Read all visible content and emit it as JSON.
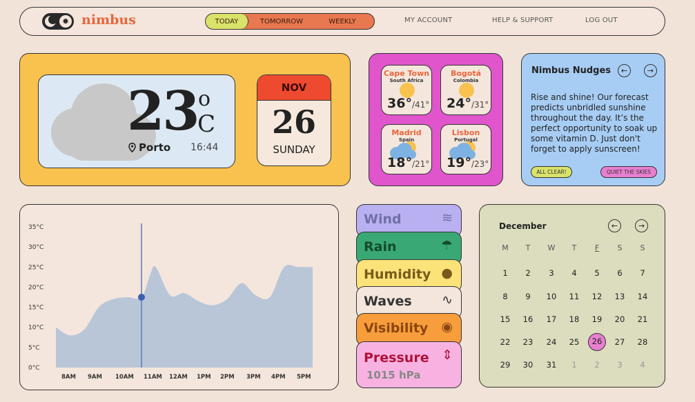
{
  "header": {
    "brand": "nimbus",
    "tabs": [
      "TODAY",
      "TOMORROW",
      "WEEKLY"
    ],
    "nav": [
      "MY ACCOUNT",
      "HELP & SUPPORT",
      "LOG OUT"
    ]
  },
  "current": {
    "temp": "23",
    "deg": "o",
    "unit": "C",
    "location": "Porto",
    "time": "16:44",
    "month": "NOV",
    "day": "26",
    "weekday": "SUNDAY"
  },
  "cities": [
    {
      "name": "Cape Town",
      "country": "South Africa",
      "high": "36°",
      "low": "/41°",
      "icon": "sun"
    },
    {
      "name": "Bogotá",
      "country": "Colombia",
      "high": "24°",
      "low": "/31°",
      "icon": "sun"
    },
    {
      "name": "Madrid",
      "country": "Spain",
      "high": "18°",
      "low": "/21°",
      "icon": "cloud-sun"
    },
    {
      "name": "Lisbon",
      "country": "Portugal",
      "high": "19°",
      "low": "/23°",
      "icon": "cloud-sun"
    }
  ],
  "nudges": {
    "title": "Nimbus Nudges",
    "text": "Rise and shine! Our forecast predicts unbridled sunshine throughout the day. It’s the perfect opportunity to soak up some vitamin D. Just don't forget to apply sunscreen!",
    "btn_left": "ALL CLEAR!",
    "btn_right": "QUIET THE SKIES",
    "prev": "←",
    "next": "→"
  },
  "chart_data": {
    "type": "area",
    "x": [
      "8AM",
      "9AM",
      "10AM",
      "11AM",
      "12AM",
      "1PM",
      "2PM",
      "3PM",
      "4PM",
      "5PM"
    ],
    "y_ticks": [
      "0°C",
      "5°C",
      "10°C",
      "15°C",
      "20°C",
      "25°C",
      "30°C",
      "35°C"
    ],
    "ylim": [
      0,
      35
    ],
    "profile": [
      [
        8.0,
        10
      ],
      [
        8.5,
        8
      ],
      [
        9.0,
        9.5
      ],
      [
        9.5,
        15
      ],
      [
        10.0,
        17
      ],
      [
        10.5,
        17.5
      ],
      [
        11.0,
        17.5
      ],
      [
        11.3,
        23
      ],
      [
        11.5,
        25
      ],
      [
        12.0,
        18
      ],
      [
        12.5,
        18.5
      ],
      [
        13.0,
        16.5
      ],
      [
        13.5,
        15.5
      ],
      [
        14.0,
        17
      ],
      [
        14.5,
        21
      ],
      [
        15.0,
        18
      ],
      [
        15.5,
        17.5
      ],
      [
        16.0,
        25
      ],
      [
        16.5,
        25
      ],
      [
        17.0,
        25
      ]
    ],
    "marker": {
      "x": 11.0,
      "y": 17.5
    },
    "fill": "#b9c6d8",
    "marker_color": "#3a5fb0"
  },
  "metrics": [
    {
      "label": "Wind",
      "icon": "≋",
      "color": "#b8b0f0",
      "text_color": "#7070a8"
    },
    {
      "label": "Rain",
      "icon": "☂",
      "color": "#3aa874",
      "text_color": "#134a2e"
    },
    {
      "label": "Humidity",
      "icon": "●",
      "color": "#fbe37a",
      "text_color": "#7a5a1a"
    },
    {
      "label": "Waves",
      "icon": "∿",
      "color": "#f4e6dc",
      "text_color": "#333333"
    },
    {
      "label": "Visibility",
      "icon": "◉",
      "color": "#f79d3b",
      "text_color": "#8a4510"
    },
    {
      "label": "Pressure",
      "value": "1015 hPa",
      "icon": "⇕",
      "color": "#f7b2e2",
      "text_color": "#b0123a"
    }
  ],
  "calendar": {
    "month": "December",
    "weekdays": [
      "M",
      "T",
      "W",
      "T",
      "F",
      "S",
      "S"
    ],
    "weeks": [
      [
        "1",
        "2",
        "3",
        "4",
        "5",
        "6",
        "7"
      ],
      [
        "8",
        "9",
        "10",
        "11",
        "12",
        "13",
        "14"
      ],
      [
        "15",
        "16",
        "17",
        "18",
        "19",
        "20",
        "21"
      ],
      [
        "22",
        "23",
        "24",
        "25",
        "26",
        "27",
        "28"
      ],
      [
        "29",
        "30",
        "31",
        "1",
        "2",
        "3",
        "4"
      ]
    ],
    "selected": "26",
    "prev": "←",
    "next": "→"
  }
}
